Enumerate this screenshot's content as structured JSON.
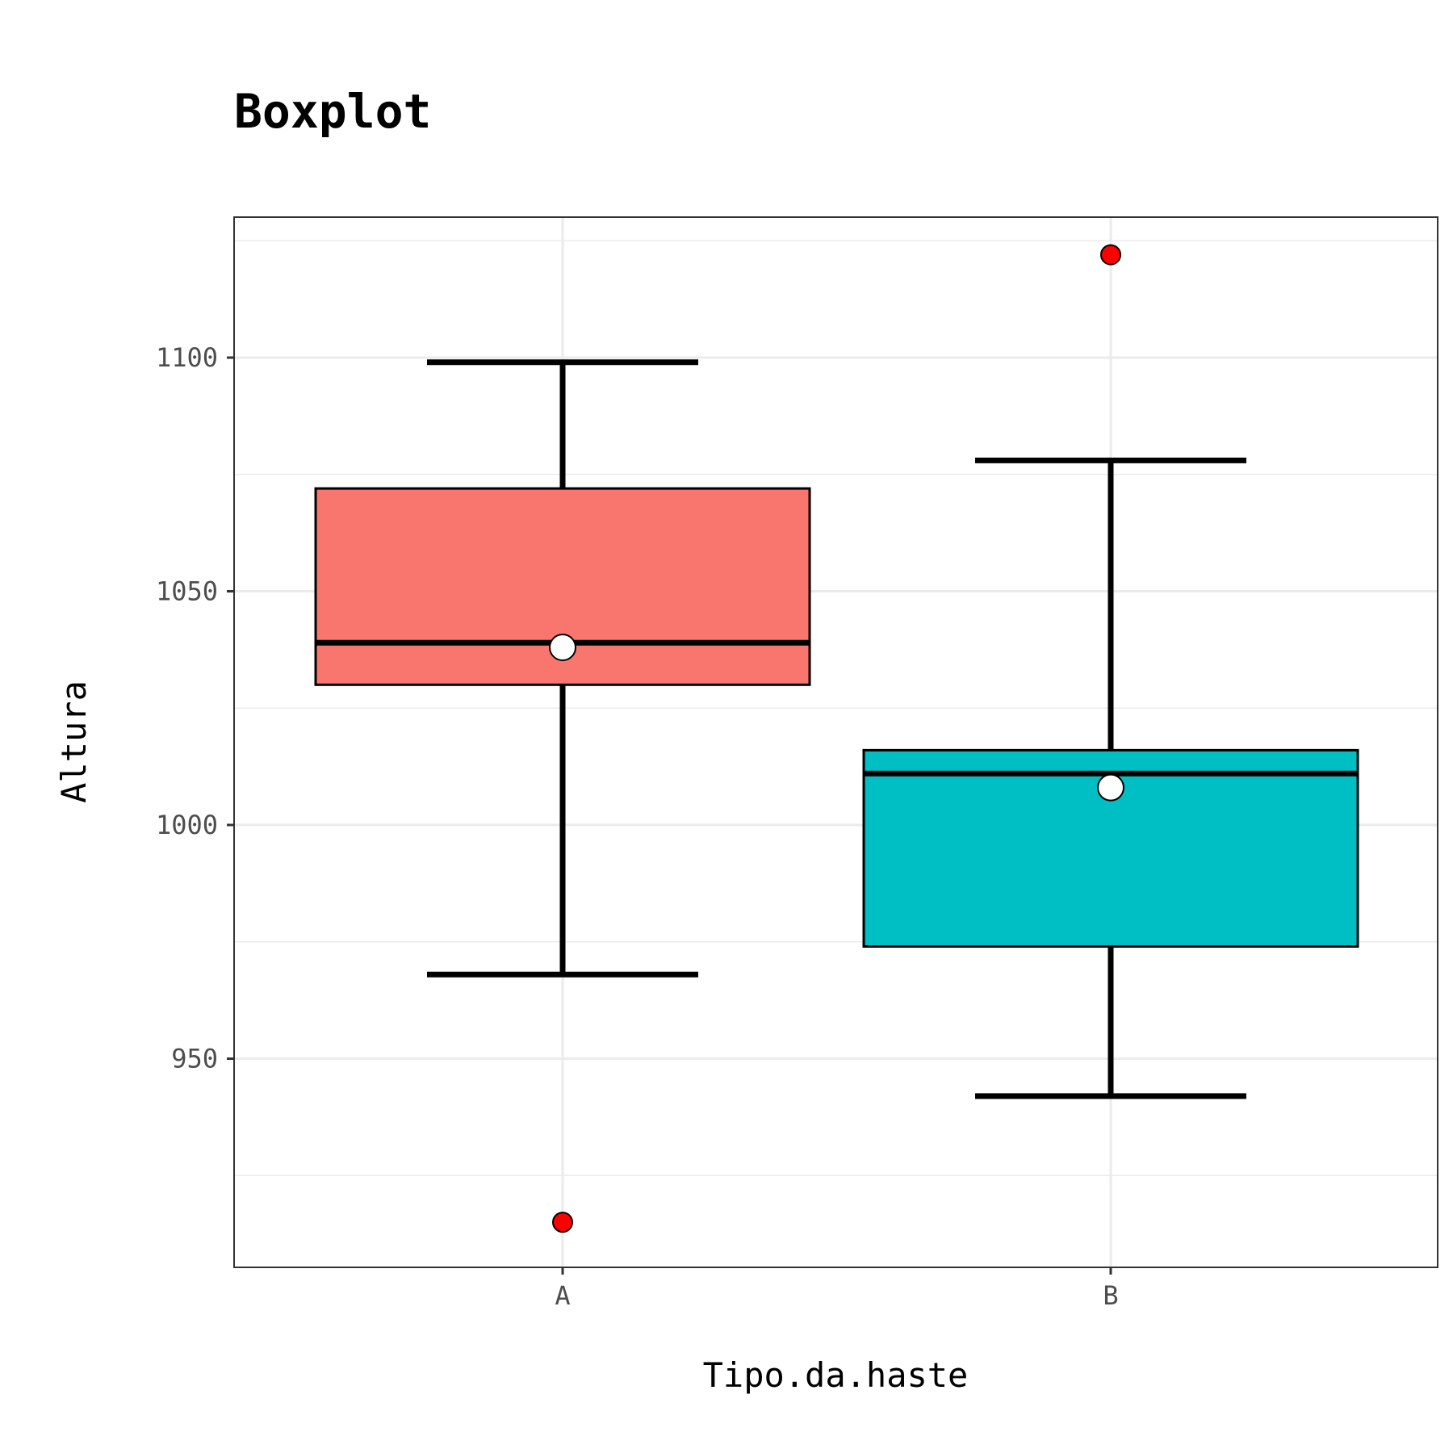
{
  "chart_data": {
    "type": "boxplot",
    "title": "Boxplot",
    "xlabel": "Tipo.da.haste",
    "ylabel": "Altura",
    "categories": [
      "A",
      "B"
    ],
    "ylim": [
      907,
      1132
    ],
    "y_ticks": [
      950,
      1000,
      1050,
      1100
    ],
    "y_minor_ticks": [
      925,
      975,
      1025,
      1075,
      1125
    ],
    "grid": true,
    "legend": "none",
    "boxes": [
      {
        "category": "A",
        "whisker_low": 968,
        "q1": 1030,
        "median": 1039,
        "q3": 1072,
        "whisker_high": 1099,
        "mean": 1038,
        "outliers": [
          915
        ],
        "fill": "#F8766D"
      },
      {
        "category": "B",
        "whisker_low": 942,
        "q1": 974,
        "median": 1011,
        "q3": 1016,
        "whisker_high": 1078,
        "mean": 1008,
        "outliers": [
          1122
        ],
        "fill": "#00BFC4"
      }
    ],
    "outlier_color": "#FF0000",
    "mean_marker_color": "#FFFFFF"
  }
}
